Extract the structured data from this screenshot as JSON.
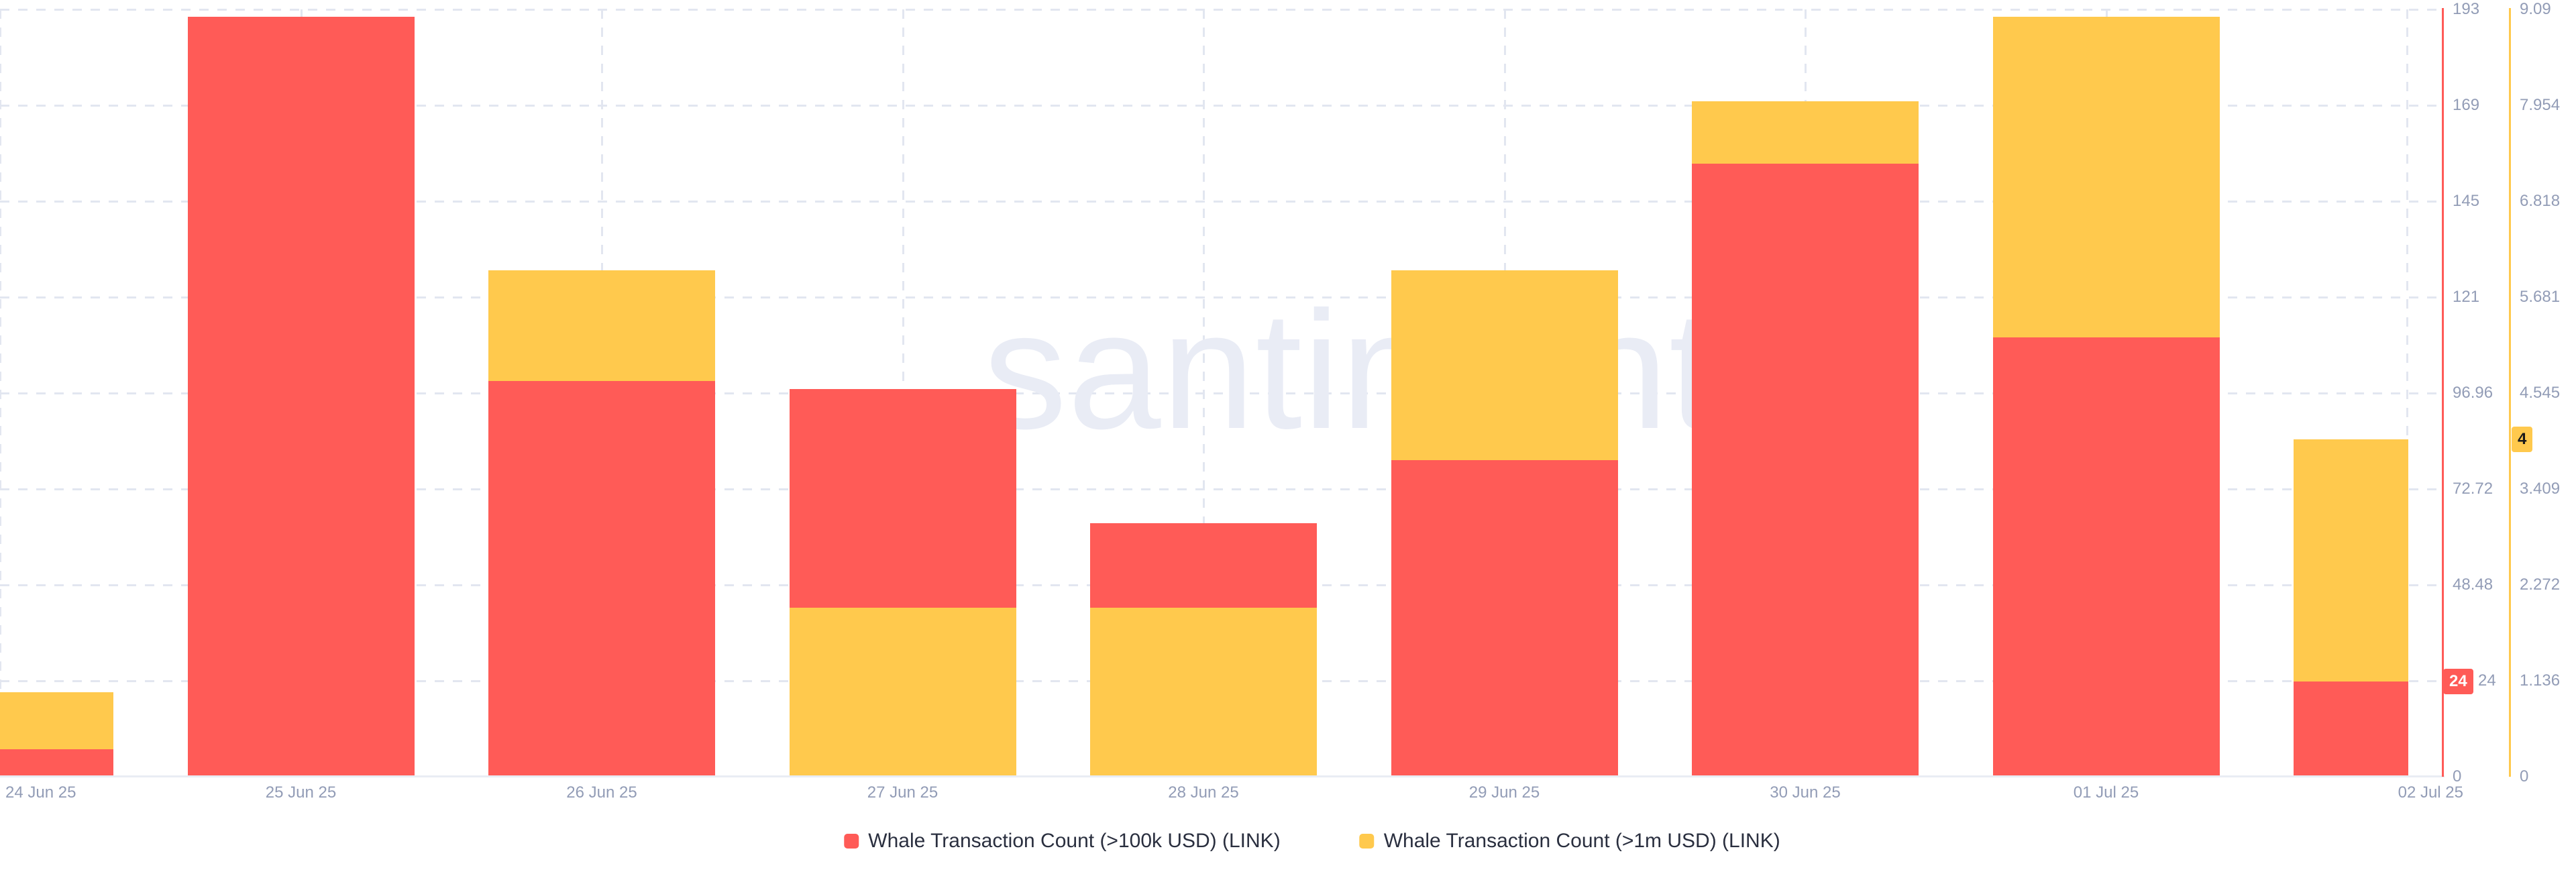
{
  "chart_data": {
    "type": "bar",
    "mode": "overlapped-dual-axis",
    "categories": [
      "24 Jun 25",
      "25 Jun 25",
      "26 Jun 25",
      "27 Jun 25",
      "28 Jun 25",
      "29 Jun 25",
      "30 Jun 25",
      "01 Jul 25",
      "02 Jul 25"
    ],
    "series": [
      {
        "name": "Whale Transaction Count (>100k USD) (LINK)",
        "color": "#ff5b57",
        "axis": "right-red",
        "axis_max": 193.92,
        "axis_ticks_bottom_up": [
          "0",
          "24",
          "48.48",
          "72.72",
          "96.96",
          "121",
          "145",
          "169",
          "193"
        ],
        "values": [
          7,
          192,
          100,
          98,
          64,
          80,
          155,
          111,
          24
        ],
        "current_value_badge": "24"
      },
      {
        "name": "Whale Transaction Count (>1m USD) (LINK)",
        "color": "#ffc94d",
        "axis": "right-yellow",
        "axis_max": 9.09,
        "axis_ticks_bottom_up": [
          "0",
          "1.136",
          "2.272",
          "3.409",
          "4.545",
          "5.681",
          "6.818",
          "7.954",
          "9.09"
        ],
        "values": [
          1,
          0,
          6,
          2,
          2,
          6,
          8,
          9,
          4
        ],
        "current_value_badge": "4"
      }
    ],
    "legend_position": "bottom",
    "grid": true,
    "watermark": ".santiment",
    "colors": {
      "grid": "#e2e6f0",
      "axis_bottom_line": "#e9edf4",
      "tick_text": "#929cb6",
      "legend_text": "#2a2f3f",
      "watermark": "#e9ecf5",
      "badge_red_text": "#ffffff",
      "badge_yellow_text": "#1a1a1a"
    }
  }
}
